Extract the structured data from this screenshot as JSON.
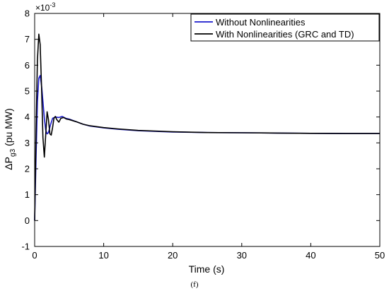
{
  "caption": "(f)",
  "chart_data": {
    "type": "line",
    "title": "",
    "xlabel": "Time (s)",
    "ylabel": {
      "prefix": "ΔP",
      "subscript": "g3",
      "suffix": " (pu MW)"
    },
    "y_multiplier": "×10",
    "y_exponent": "-3",
    "xlim": [
      0,
      50
    ],
    "ylim": [
      -1,
      8
    ],
    "x_ticks": [
      0,
      10,
      20,
      30,
      40,
      50
    ],
    "y_ticks": [
      -1,
      0,
      1,
      2,
      3,
      4,
      5,
      6,
      7,
      8
    ],
    "grid": false,
    "legend_position": "top-right",
    "series": [
      {
        "name": "Without Nonlinearities",
        "color": "#1a1acc",
        "x": [
          0,
          0.2,
          0.4,
          0.6,
          0.8,
          1.0,
          1.2,
          1.4,
          1.6,
          1.8,
          2.0,
          2.3,
          2.6,
          3.0,
          3.5,
          4.0,
          4.5,
          5.0,
          6.0,
          7.0,
          8.0,
          10.0,
          12.0,
          15.0,
          20.0,
          25.0,
          30.0,
          35.0,
          40.0,
          45.0,
          50.0
        ],
        "y": [
          0,
          2.5,
          4.6,
          5.5,
          5.6,
          5.2,
          4.6,
          3.95,
          3.5,
          3.35,
          3.4,
          3.7,
          3.95,
          4.0,
          3.98,
          4.02,
          3.95,
          3.92,
          3.82,
          3.72,
          3.65,
          3.58,
          3.53,
          3.47,
          3.42,
          3.4,
          3.39,
          3.38,
          3.37,
          3.36,
          3.36
        ]
      },
      {
        "name": "With Nonlinearities (GRC and TD)",
        "color": "#000000",
        "x": [
          0,
          0.2,
          0.4,
          0.6,
          0.8,
          1.0,
          1.2,
          1.4,
          1.6,
          1.8,
          2.0,
          2.2,
          2.4,
          2.6,
          2.8,
          3.0,
          3.2,
          3.5,
          3.8,
          4.2,
          4.6,
          5.0,
          6.0,
          7.0,
          8.0,
          10.0,
          12.0,
          15.0,
          20.0,
          25.0,
          30.0,
          35.0,
          40.0,
          45.0,
          50.0
        ],
        "y": [
          0,
          3.5,
          6.2,
          7.2,
          6.8,
          5.1,
          3.2,
          2.45,
          3.3,
          4.2,
          3.9,
          3.35,
          3.3,
          3.6,
          3.95,
          4.02,
          3.9,
          3.8,
          3.95,
          3.98,
          3.92,
          3.9,
          3.82,
          3.72,
          3.66,
          3.59,
          3.54,
          3.48,
          3.43,
          3.4,
          3.39,
          3.38,
          3.37,
          3.36,
          3.36
        ]
      }
    ]
  }
}
